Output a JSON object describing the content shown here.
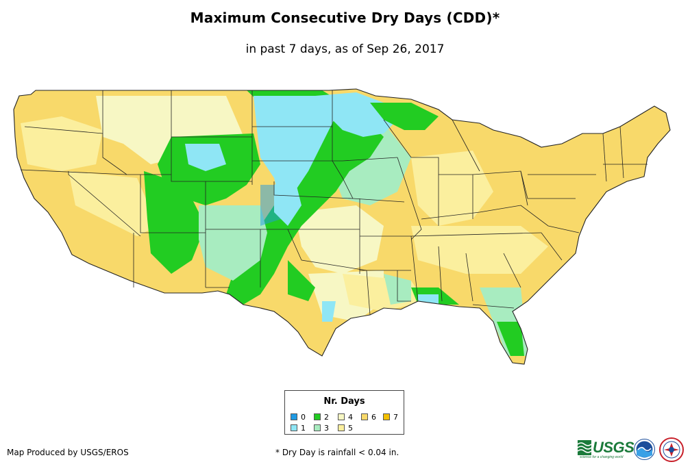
{
  "title": "Maximum Consecutive Dry Days (CDD)*",
  "subtitle": "in past 7 days, as of Sep 26, 2017",
  "legend": {
    "title": "Nr. Days",
    "items": [
      {
        "label": "0",
        "color": "#1f9ae3"
      },
      {
        "label": "1",
        "color": "#8fe6f5"
      },
      {
        "label": "2",
        "color": "#22cc22"
      },
      {
        "label": "3",
        "color": "#a8ecc0"
      },
      {
        "label": "4",
        "color": "#f7f7c4"
      },
      {
        "label": "5",
        "color": "#fbef9e"
      },
      {
        "label": "6",
        "color": "#f8d96a"
      },
      {
        "label": "7",
        "color": "#f3c000"
      }
    ]
  },
  "credit": "Map Produced by USGS/EROS",
  "footnote": "* Dry Day is rainfall < 0.04 in.",
  "logos": {
    "usgs": "USGS",
    "usgs_tagline": "science for a changing world",
    "noaa_icon": "noaa-logo-icon",
    "nws_icon": "nws-logo-icon"
  }
}
